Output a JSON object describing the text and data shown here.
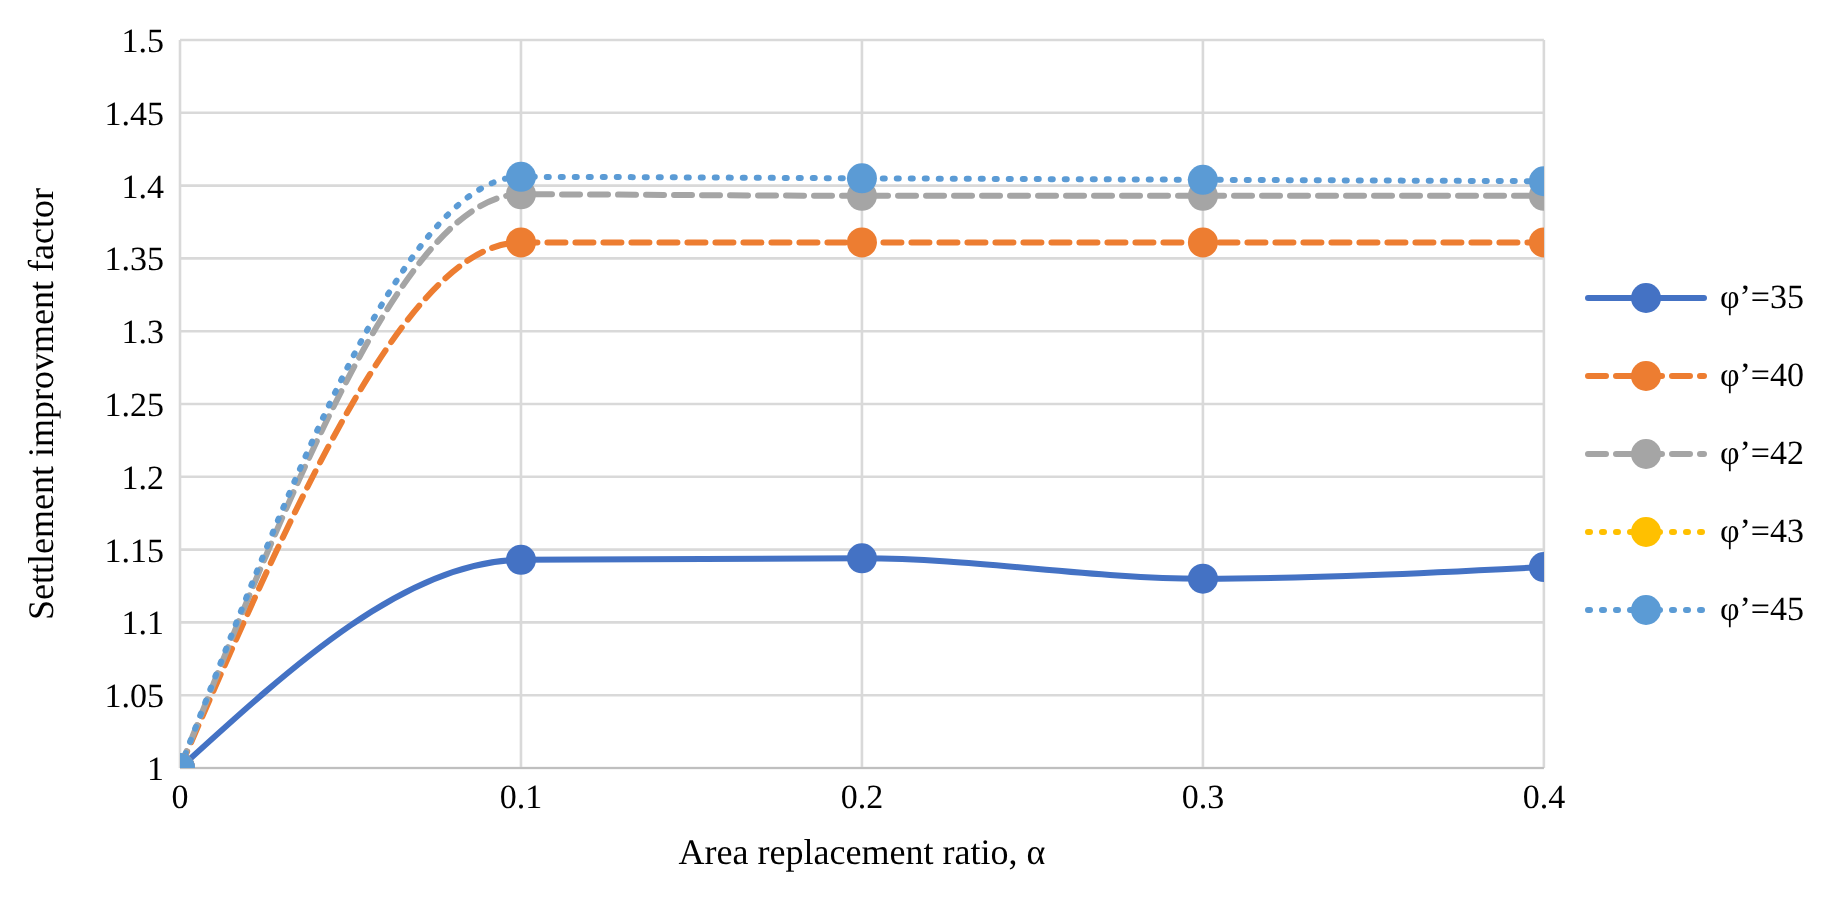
{
  "chart_data": {
    "type": "line",
    "xlabel": "Area replacement ratio, α",
    "ylabel": "Settlement improvment factor",
    "x": [
      0,
      0.1,
      0.2,
      0.3,
      0.4
    ],
    "xlim": [
      0,
      0.4
    ],
    "xticks": [
      0,
      0.1,
      0.2,
      0.3,
      0.4
    ],
    "ylim": [
      1,
      1.5
    ],
    "yticks": [
      1,
      1.05,
      1.1,
      1.15,
      1.2,
      1.25,
      1.3,
      1.35,
      1.4,
      1.45,
      1.5
    ],
    "grid": true,
    "legend": "right",
    "marker": "circle",
    "series": [
      {
        "name": "φ’=35",
        "color": "#4472c4",
        "line_style": "solid",
        "values": [
          1,
          1.143,
          1.144,
          1.13,
          1.138
        ]
      },
      {
        "name": "φ’=40",
        "color": "#ed7d31",
        "line_style": "dashed",
        "values": [
          1,
          1.361,
          1.361,
          1.361,
          1.361
        ]
      },
      {
        "name": "φ’=42",
        "color": "#a5a5a5",
        "line_style": "dashed",
        "values": [
          1,
          1.394,
          1.393,
          1.393,
          1.393
        ]
      },
      {
        "name": "φ’=43",
        "color": "#ffc000",
        "line_style": "dotted",
        "values": [
          null,
          null,
          null,
          null,
          null
        ]
      },
      {
        "name": "φ’=45",
        "color": "#5b9bd5",
        "line_style": "dotted",
        "values": [
          1,
          1.406,
          1.405,
          1.404,
          1.403
        ]
      }
    ]
  }
}
